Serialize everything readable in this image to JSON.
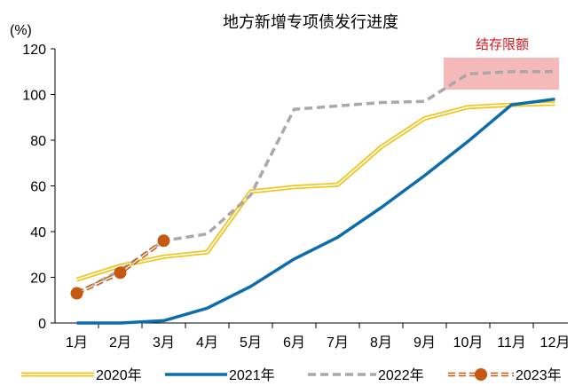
{
  "chart_data": {
    "type": "line",
    "title": "地方新增专项债发行进度",
    "ylabel": "(%)",
    "xlabel": "",
    "ylim": [
      0,
      120
    ],
    "yticks": [
      0,
      20,
      40,
      60,
      80,
      100,
      120
    ],
    "categories": [
      "1月",
      "2月",
      "3月",
      "4月",
      "5月",
      "6月",
      "7月",
      "8月",
      "9月",
      "10月",
      "11月",
      "12月"
    ],
    "series": [
      {
        "name": "2020年",
        "style": "double-line",
        "color": "#f0c419",
        "values": [
          19,
          25,
          29,
          31,
          57.5,
          59.5,
          60.5,
          77,
          89.5,
          94.5,
          95.5,
          96
        ]
      },
      {
        "name": "2021年",
        "style": "solid",
        "color": "#0c6dad",
        "values": [
          0,
          0,
          1,
          6.5,
          16,
          28,
          37.5,
          50.5,
          64.5,
          79.5,
          95.5,
          98
        ]
      },
      {
        "name": "2022年",
        "style": "dashed",
        "color": "#a9a9a9",
        "values": [
          13,
          23,
          36,
          39,
          56,
          93.5,
          95,
          96.5,
          97,
          109,
          110,
          110
        ]
      },
      {
        "name": "2023年",
        "style": "dashed-double-marker",
        "color": "#c65911",
        "values": [
          13,
          22,
          36,
          null,
          null,
          null,
          null,
          null,
          null,
          null,
          null,
          null
        ]
      }
    ],
    "annotation": {
      "text": "结存限额",
      "box_color": "#f6b9b9",
      "text_color": "#d9161c"
    },
    "grid": false,
    "legend_position": "bottom"
  }
}
